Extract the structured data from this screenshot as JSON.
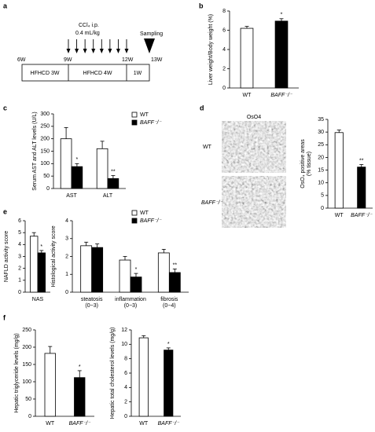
{
  "timeline": {
    "label": "a",
    "weeks": [
      "6W",
      "9W",
      "12W",
      "13W"
    ],
    "phases": [
      "HFHCD 3W",
      "HFHCD 4W",
      "1W"
    ],
    "treatment": [
      "CCl₄ i.p.",
      "0.4 mL/kg"
    ],
    "sampling": "Sampling"
  },
  "micrographs": {
    "title": "OsO4",
    "labels": [
      "WT",
      "BAFF⁻/⁻"
    ]
  },
  "chart_data": [
    {
      "type": "bar",
      "panel": "b",
      "ylabel": "Liver weight/Body weight (%)",
      "categories": [
        "WT",
        "BAFF⁻/⁻"
      ],
      "values": [
        6.2,
        6.95
      ],
      "errors": [
        0.2,
        0.25
      ],
      "colors": [
        "#ffffff",
        "#000000"
      ],
      "significance": [
        null,
        "*"
      ],
      "ylim": [
        0,
        8
      ],
      "yticks": [
        0,
        2,
        4,
        6,
        8
      ]
    },
    {
      "type": "bar",
      "panel": "c",
      "ylabel": "Serum AST and ALT levels (U/L)",
      "categories": [
        "AST",
        "ALT"
      ],
      "series": [
        {
          "name": "WT",
          "color": "#ffffff",
          "values": [
            200,
            160
          ],
          "errors": [
            45,
            30
          ],
          "significance": [
            null,
            null
          ]
        },
        {
          "name": "BAFF⁻/⁻",
          "color": "#000000",
          "values": [
            88,
            40
          ],
          "errors": [
            12,
            12
          ],
          "significance": [
            "*",
            "**"
          ]
        }
      ],
      "legend": "upper right",
      "ylim": [
        0,
        300
      ],
      "yticks": [
        0,
        50,
        100,
        150,
        200,
        250,
        300
      ]
    },
    {
      "type": "bar",
      "panel": "d",
      "ylabel": [
        "OsO₄ positive areas",
        "(% tissue)"
      ],
      "categories": [
        "WT",
        "BAFF⁻/⁻"
      ],
      "values": [
        29.8,
        16.2
      ],
      "errors": [
        1,
        1
      ],
      "colors": [
        "#ffffff",
        "#000000"
      ],
      "significance": [
        null,
        "**"
      ],
      "ylim": [
        0,
        35
      ],
      "yticks": [
        0,
        5,
        10,
        15,
        20,
        25,
        30,
        35
      ]
    },
    {
      "type": "bar",
      "panel": "e",
      "ylabel": "NAFLD activity score",
      "categories": [
        "NAS"
      ],
      "series": [
        {
          "name": "WT",
          "color": "#ffffff",
          "values": [
            4.7
          ],
          "errors": [
            0.3
          ],
          "significance": [
            null
          ]
        },
        {
          "name": "BAFF⁻/⁻",
          "color": "#000000",
          "values": [
            3.3
          ],
          "errors": [
            0.2
          ],
          "significance": [
            "*"
          ]
        }
      ],
      "ylim": [
        0,
        6
      ],
      "yticks": [
        0,
        1,
        2,
        3,
        4,
        5,
        6
      ]
    },
    {
      "type": "bar",
      "ylabel": "Histological activity score",
      "categories": [
        [
          "steatosis",
          "(0−3)"
        ],
        [
          "inflammation",
          "(0−3)"
        ],
        [
          "fibrosis",
          "(0−4)"
        ]
      ],
      "series": [
        {
          "name": "WT",
          "color": "#ffffff",
          "values": [
            2.6,
            1.8,
            2.2
          ],
          "errors": [
            0.2,
            0.2,
            0.2
          ],
          "significance": [
            null,
            null,
            null
          ]
        },
        {
          "name": "BAFF⁻/⁻",
          "color": "#000000",
          "values": [
            2.5,
            0.85,
            1.1
          ],
          "errors": [
            0.2,
            0.2,
            0.2
          ],
          "significance": [
            null,
            "*",
            "**"
          ]
        }
      ],
      "legend": "upper right",
      "ylim": [
        0,
        4
      ],
      "yticks": [
        0,
        1,
        2,
        3,
        4
      ]
    },
    {
      "type": "bar",
      "panel": "f",
      "ylabel": "Hepatic triglyceride levels (mg/g)",
      "categories": [
        "WT",
        "BAFF⁻/⁻"
      ],
      "values": [
        182,
        112
      ],
      "errors": [
        20,
        20
      ],
      "colors": [
        "#ffffff",
        "#000000"
      ],
      "significance": [
        null,
        "*"
      ],
      "ylim": [
        0,
        250
      ],
      "yticks": [
        0,
        50,
        100,
        150,
        200,
        250
      ]
    },
    {
      "type": "bar",
      "ylabel": "Hepatic total cholesterol levels (mg/g)",
      "categories": [
        "WT",
        "BAFF⁻/⁻"
      ],
      "values": [
        10.9,
        9.2
      ],
      "errors": [
        0.3,
        0.3
      ],
      "colors": [
        "#ffffff",
        "#000000"
      ],
      "significance": [
        null,
        "*"
      ],
      "ylim": [
        0,
        12
      ],
      "yticks": [
        0,
        2,
        4,
        6,
        8,
        10,
        12
      ]
    }
  ]
}
